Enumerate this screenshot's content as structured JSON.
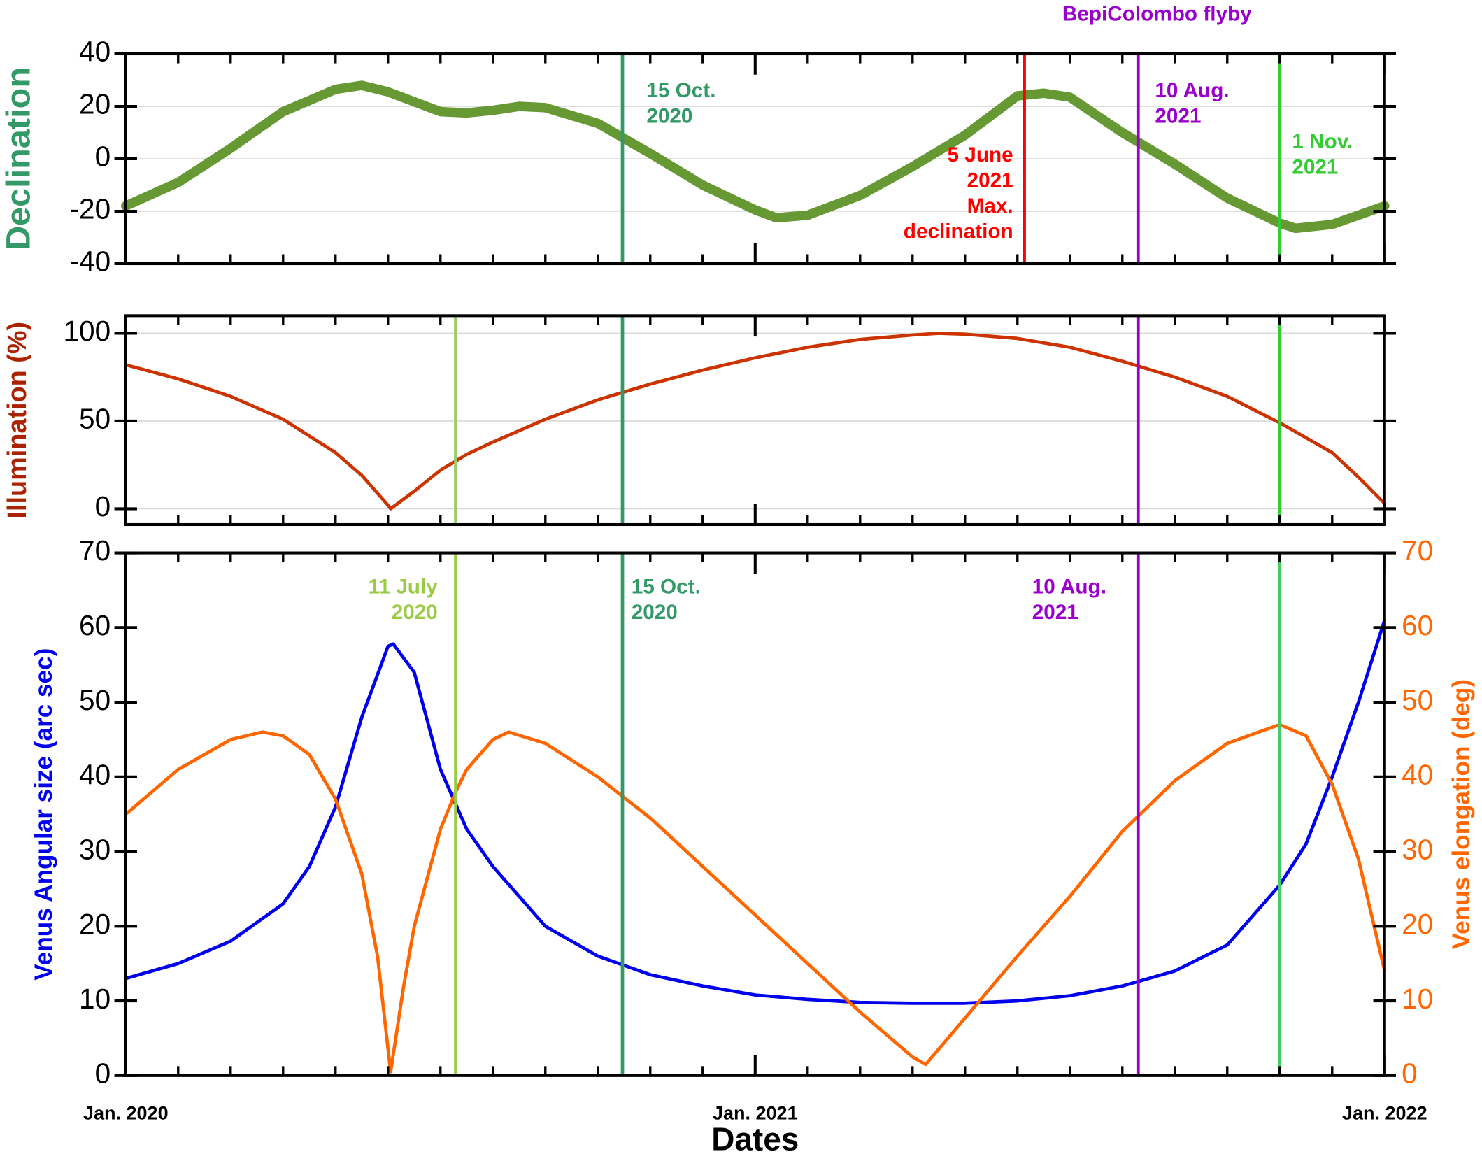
{
  "chart_data": [
    {
      "type": "line",
      "ylabel": "Declination",
      "ylabel_color": "#339966",
      "xlim": [
        0,
        24
      ],
      "xticks": [
        0,
        12,
        24
      ],
      "xminorticks": [
        1,
        2,
        3,
        4,
        5,
        6,
        7,
        8,
        9,
        10,
        11,
        13,
        14,
        15,
        16,
        17,
        18,
        19,
        20,
        21,
        22,
        23
      ],
      "ylim": [
        -40,
        40
      ],
      "yticks": [
        -40,
        -20,
        0,
        20,
        40
      ],
      "grid": true,
      "series": [
        {
          "color": "#669933",
          "x": [
            0,
            1,
            2,
            3,
            4,
            4.5,
            5,
            6,
            6.5,
            7,
            7.5,
            8,
            9,
            10,
            11,
            12,
            12.4,
            13,
            14,
            15,
            16,
            17,
            17.5,
            18,
            19,
            20,
            21,
            22,
            22.3,
            23,
            24
          ],
          "values": [
            -18,
            -9,
            4,
            18,
            26.5,
            28,
            25.5,
            18,
            17.5,
            18.5,
            20,
            19.5,
            13.5,
            2,
            -10,
            -19.5,
            -22.5,
            -21.5,
            -14,
            -3,
            9,
            24,
            25,
            23.5,
            10,
            -2,
            -15,
            -24.5,
            -26.5,
            -25,
            -18
          ]
        }
      ],
      "events": [
        {
          "x": 9.47,
          "color": "#339966",
          "label": [
            "15 Oct.",
            "2020"
          ]
        },
        {
          "x": 17.13,
          "color": "#ff0000",
          "label": [
            "5 June",
            "2021",
            "Max.",
            "declination"
          ]
        },
        {
          "x": 19.3,
          "color": "#9900cc",
          "label": [
            "10 Aug.",
            "2021"
          ],
          "note": "BepiColombo flyby"
        },
        {
          "x": 22,
          "color": "#33cc33",
          "label": [
            "1 Nov.",
            "2021"
          ]
        }
      ]
    },
    {
      "type": "line",
      "ylabel": "Illumination (%)",
      "ylabel_color": "#aa2200",
      "xlim": [
        0,
        24
      ],
      "xticks": [
        0,
        12,
        24
      ],
      "xminorticks": [
        1,
        2,
        3,
        4,
        5,
        6,
        7,
        8,
        9,
        10,
        11,
        13,
        14,
        15,
        16,
        17,
        18,
        19,
        20,
        21,
        22,
        23
      ],
      "ylim": [
        -9,
        110
      ],
      "yticks": [
        0,
        50,
        100
      ],
      "grid": true,
      "series": [
        {
          "color": "#cc3300",
          "x": [
            0,
            1,
            2,
            3,
            4,
            4.5,
            5,
            5.05,
            5.5,
            6,
            6.5,
            7,
            8,
            9,
            10,
            11,
            12,
            13,
            14,
            15,
            15.5,
            16,
            17,
            18,
            19,
            20,
            21,
            22,
            23,
            23.5,
            24
          ],
          "values": [
            82,
            74,
            64,
            51,
            32,
            19,
            2,
            0,
            10,
            22,
            31,
            38,
            51,
            62,
            71,
            79,
            86,
            92,
            96.5,
            99,
            100,
            99.5,
            97,
            92,
            84,
            75,
            64,
            49,
            32,
            18,
            3
          ]
        }
      ],
      "events": [
        {
          "x": 6.29,
          "color": "#99cc66"
        },
        {
          "x": 9.47,
          "color": "#339966"
        },
        {
          "x": 19.3,
          "color": "#9900cc"
        },
        {
          "x": 22,
          "color": "#33cc33"
        }
      ]
    },
    {
      "type": "line",
      "ylabel": "Venus Angular size (arc sec)",
      "ylabel_color": "#0000ee",
      "y2label": "Venus elongation (deg)",
      "y2label_color": "#ff6600",
      "xlabel": "Dates",
      "xlim": [
        0,
        24
      ],
      "xticks": [
        {
          "value": 0,
          "label": "Jan. 2020"
        },
        {
          "value": 12,
          "label": "Jan. 2021"
        },
        {
          "value": 24,
          "label": "Jan. 2022"
        }
      ],
      "xminorticks": [
        1,
        2,
        3,
        4,
        5,
        6,
        7,
        8,
        9,
        10,
        11,
        13,
        14,
        15,
        16,
        17,
        18,
        19,
        20,
        21,
        22,
        23
      ],
      "ylim": [
        0,
        70
      ],
      "yticks": [
        0,
        10,
        20,
        30,
        40,
        50,
        60,
        70
      ],
      "y2lim": [
        0,
        70
      ],
      "y2ticks": [
        0,
        10,
        20,
        30,
        40,
        50,
        60,
        70
      ],
      "grid": false,
      "series": [
        {
          "color": "#0000ee",
          "x": [
            0,
            1,
            2,
            3,
            3.5,
            4,
            4.5,
            5,
            5.1,
            5.5,
            6,
            6.5,
            7,
            8,
            9,
            10,
            11,
            12,
            13,
            14,
            15,
            16,
            17,
            18,
            19,
            20,
            21,
            22,
            22.5,
            23,
            23.5,
            24
          ],
          "values": [
            13,
            15,
            18,
            23,
            28,
            36,
            48,
            57.5,
            57.8,
            54,
            41,
            33,
            28,
            20,
            16,
            13.5,
            12,
            10.8,
            10.2,
            9.8,
            9.7,
            9.7,
            10,
            10.7,
            12,
            14,
            17.5,
            25.5,
            31,
            40,
            50,
            61
          ]
        },
        {
          "color": "#ff6600",
          "axis": "y2",
          "x": [
            0,
            1,
            2,
            2.6,
            3,
            3.5,
            4,
            4.5,
            4.8,
            5.05,
            5.3,
            5.5,
            6,
            6.29,
            6.5,
            7,
            7.3,
            8,
            9,
            10,
            11,
            12,
            13,
            14,
            15,
            15.25,
            16,
            17,
            18,
            19,
            20,
            21,
            22,
            22.5,
            23,
            23.5,
            24
          ],
          "values": [
            35,
            41,
            45,
            46,
            45.5,
            43,
            37,
            27,
            16,
            0.5,
            12,
            20,
            33,
            38,
            41,
            45,
            46,
            44.5,
            40,
            34.5,
            28,
            21.5,
            15,
            8.5,
            2.5,
            1.5,
            7.7,
            16,
            24,
            32.7,
            39.5,
            44.5,
            47,
            45.5,
            39,
            29,
            14
          ]
        }
      ],
      "events": [
        {
          "x": 6.29,
          "color": "#99cc44",
          "label": [
            "11 July",
            "2020"
          ]
        },
        {
          "x": 9.47,
          "color": "#339966",
          "label": [
            "15 Oct.",
            "2020"
          ]
        },
        {
          "x": 19.3,
          "color": "#9900cc",
          "label": [
            "10 Aug.",
            "2021"
          ]
        },
        {
          "x": 22,
          "color": "#44cc66"
        }
      ]
    }
  ]
}
